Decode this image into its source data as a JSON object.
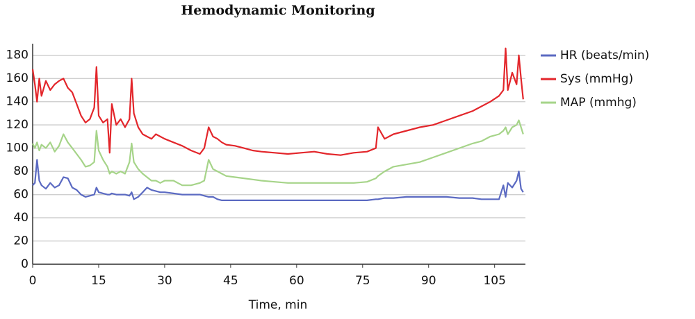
{
  "chart_data": {
    "type": "line",
    "title": "Hemodynamic Monitoring",
    "x_label": "Time, min",
    "x": [
      0,
      0.5,
      1,
      1.5,
      2,
      3,
      4,
      5,
      6,
      7,
      8,
      9,
      10,
      11,
      12,
      13,
      14,
      14.5,
      15,
      16,
      17,
      17.5,
      18,
      19,
      20,
      21,
      22,
      22.5,
      23,
      24,
      25,
      26,
      27,
      28,
      29,
      30,
      32,
      34,
      36,
      38,
      39,
      40,
      41,
      42,
      43,
      44,
      46,
      48,
      50,
      52,
      55,
      58,
      61,
      64,
      67,
      70,
      73,
      76,
      78,
      78.5,
      80,
      82,
      85,
      88,
      91,
      94,
      97,
      100,
      102,
      104,
      106,
      107,
      107.5,
      108,
      109,
      110,
      110.5,
      111,
      111.5
    ],
    "series": [
      {
        "name": "HR (beats/min)",
        "color": "#5b6ac2",
        "values": [
          68,
          70,
          90,
          72,
          68,
          65,
          70,
          66,
          68,
          75,
          74,
          66,
          64,
          60,
          58,
          59,
          60,
          66,
          62,
          61,
          60,
          60,
          61,
          60,
          60,
          60,
          59,
          62,
          56,
          58,
          62,
          66,
          64,
          63,
          62,
          62,
          61,
          60,
          60,
          60,
          59,
          58,
          58,
          56,
          55,
          55,
          55,
          55,
          55,
          55,
          55,
          55,
          55,
          55,
          55,
          55,
          55,
          55,
          56,
          56,
          57,
          57,
          58,
          58,
          58,
          58,
          57,
          57,
          56,
          56,
          56,
          68,
          58,
          70,
          66,
          72,
          80,
          65,
          62
        ]
      },
      {
        "name": "Sys (mmHg)",
        "color": "#e3262b",
        "values": [
          168,
          155,
          140,
          160,
          145,
          158,
          150,
          155,
          158,
          160,
          152,
          148,
          138,
          128,
          122,
          125,
          135,
          170,
          128,
          122,
          125,
          96,
          138,
          120,
          125,
          118,
          125,
          160,
          130,
          118,
          112,
          110,
          108,
          112,
          110,
          108,
          105,
          102,
          98,
          95,
          100,
          118,
          110,
          108,
          105,
          103,
          102,
          100,
          98,
          97,
          96,
          95,
          96,
          97,
          95,
          94,
          96,
          97,
          100,
          118,
          108,
          112,
          115,
          118,
          120,
          124,
          128,
          132,
          136,
          140,
          145,
          150,
          186,
          150,
          165,
          155,
          180,
          160,
          142
        ]
      },
      {
        "name": "MAP (mmhg)",
        "color": "#a6d489",
        "values": [
          104,
          100,
          105,
          98,
          103,
          100,
          105,
          97,
          102,
          112,
          105,
          100,
          95,
          90,
          84,
          85,
          88,
          115,
          98,
          90,
          84,
          78,
          80,
          78,
          80,
          78,
          88,
          104,
          88,
          82,
          78,
          75,
          72,
          72,
          70,
          72,
          72,
          68,
          68,
          70,
          72,
          90,
          82,
          80,
          78,
          76,
          75,
          74,
          73,
          72,
          71,
          70,
          70,
          70,
          70,
          70,
          70,
          71,
          74,
          76,
          80,
          84,
          86,
          88,
          92,
          96,
          100,
          104,
          106,
          110,
          112,
          115,
          118,
          112,
          118,
          120,
          124,
          118,
          112
        ]
      }
    ],
    "xlim": [
      0,
      112
    ],
    "xticks": [
      0,
      15,
      30,
      45,
      60,
      75,
      90,
      105
    ],
    "ylim": [
      0,
      190
    ],
    "yticks": [
      0,
      20,
      40,
      60,
      80,
      100,
      120,
      140,
      160,
      180
    ],
    "grid": true,
    "legend": "right"
  }
}
